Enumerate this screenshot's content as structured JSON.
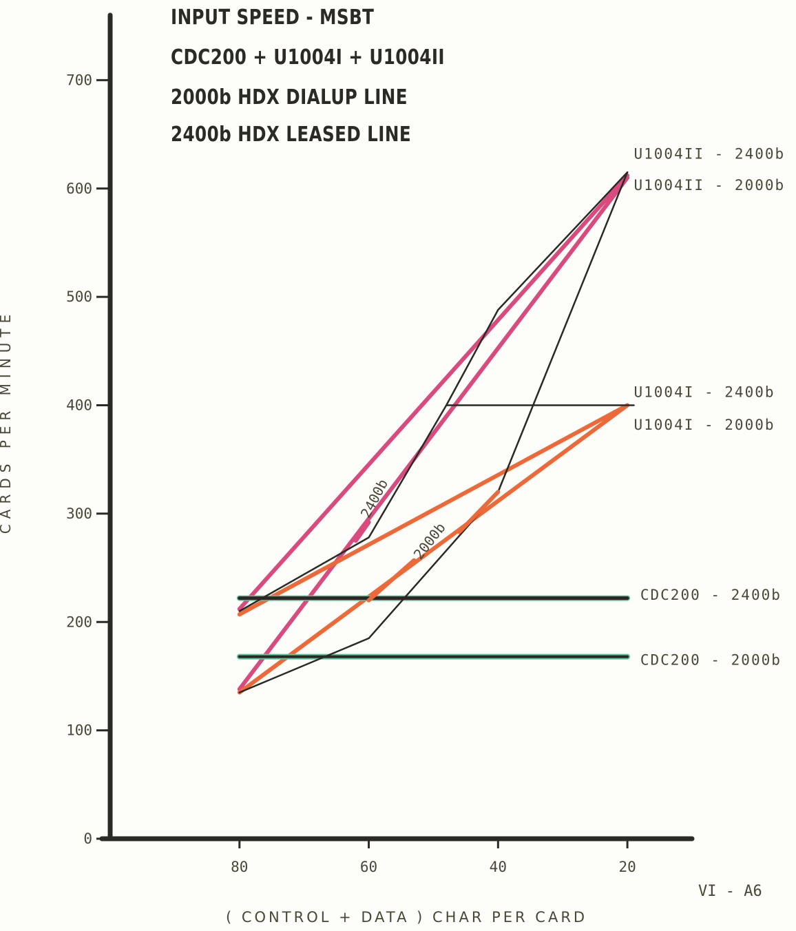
{
  "chart_data": {
    "type": "line",
    "title_lines": [
      "INPUT SPEED - MSBT",
      "CDC200 + U1004I + U1004II",
      "2000b HDX DIALUP LINE",
      "2400b HDX LEASED LINE"
    ],
    "ylabel": "CARDS PER MINUTE",
    "xlabel": "( CONTROL + DATA ) CHAR PER CARD",
    "page_id": "VI - A6",
    "xlim": [
      100,
      10
    ],
    "ylim": [
      0,
      760
    ],
    "xticks": [
      80,
      60,
      40,
      20
    ],
    "yticks": [
      0,
      100,
      200,
      300,
      400,
      500,
      600,
      700
    ],
    "grid": false,
    "colors": {
      "axis": "#2b2a24",
      "black_line": "#2a2a24",
      "pink": "#d94a7e",
      "orange": "#ec6a3a",
      "green": "#5cc49c"
    },
    "series": [
      {
        "name": "U1004II - 2400b",
        "color": "pink",
        "width": 6,
        "x": [
          80,
          20
        ],
        "y": [
          212,
          612
        ]
      },
      {
        "name": "U1004II - 2000b",
        "color": "pink",
        "width": 6,
        "x": [
          80,
          20
        ],
        "y": [
          138,
          610
        ]
      },
      {
        "name": "U1004I - 2400b",
        "color": "orange",
        "width": 6,
        "x": [
          80,
          20
        ],
        "y": [
          207,
          400
        ]
      },
      {
        "name": "U1004I - 2000b",
        "color": "orange",
        "width": 6,
        "x": [
          80,
          20
        ],
        "y": [
          135,
          400
        ]
      },
      {
        "name": "CDC200 - 2400b",
        "color": "green",
        "width": 8,
        "x": [
          80,
          20
        ],
        "y": [
          222,
          222
        ]
      },
      {
        "name": "CDC200 - 2000b",
        "color": "green",
        "width": 8,
        "x": [
          80,
          20
        ],
        "y": [
          168,
          168
        ]
      },
      {
        "name": "",
        "color": "black_line",
        "width": 2.5,
        "x": [
          80,
          60,
          48,
          40,
          20
        ],
        "y": [
          210,
          278,
          400,
          488,
          615
        ]
      },
      {
        "name": "",
        "color": "black_line",
        "width": 2.5,
        "x": [
          48,
          19
        ],
        "y": [
          400,
          400
        ]
      },
      {
        "name": "",
        "color": "black_line",
        "width": 2.5,
        "x": [
          80,
          60,
          40,
          20
        ],
        "y": [
          135,
          185,
          320,
          615
        ]
      },
      {
        "name": "",
        "color": "black_line",
        "width": 5,
        "x": [
          80,
          20
        ],
        "y": [
          222,
          222
        ]
      },
      {
        "name": "",
        "color": "black_line",
        "width": 4,
        "x": [
          80,
          20
        ],
        "y": [
          168,
          168
        ]
      },
      {
        "name": "",
        "color": "pink",
        "width": 6,
        "x": [
          62,
          60
        ],
        "y": [
          275,
          292
        ]
      },
      {
        "name": "",
        "color": "orange",
        "width": 6,
        "x": [
          60,
          53
        ],
        "y": [
          220,
          257
        ]
      },
      {
        "name": "",
        "color": "orange",
        "width": 6,
        "x": [
          46,
          40
        ],
        "y": [
          283,
          320
        ]
      }
    ],
    "end_labels": [
      {
        "text": "U1004II - 2400b",
        "x": 19,
        "y": 632
      },
      {
        "text": "U1004II - 2000b",
        "x": 19,
        "y": 603
      },
      {
        "text": "U1004I - 2400b",
        "x": 19,
        "y": 412
      },
      {
        "text": "U1004I - 2000b",
        "x": 19,
        "y": 382
      },
      {
        "text": "CDC200 - 2400b",
        "x": 18,
        "y": 225
      },
      {
        "text": "CDC200 - 2000b",
        "x": 18,
        "y": 165
      }
    ],
    "annotations": [
      {
        "text": "2400b",
        "x": 60,
        "y": 295,
        "angle": -62
      },
      {
        "text": "2000b",
        "x": 52,
        "y": 257,
        "angle": -52
      }
    ]
  }
}
